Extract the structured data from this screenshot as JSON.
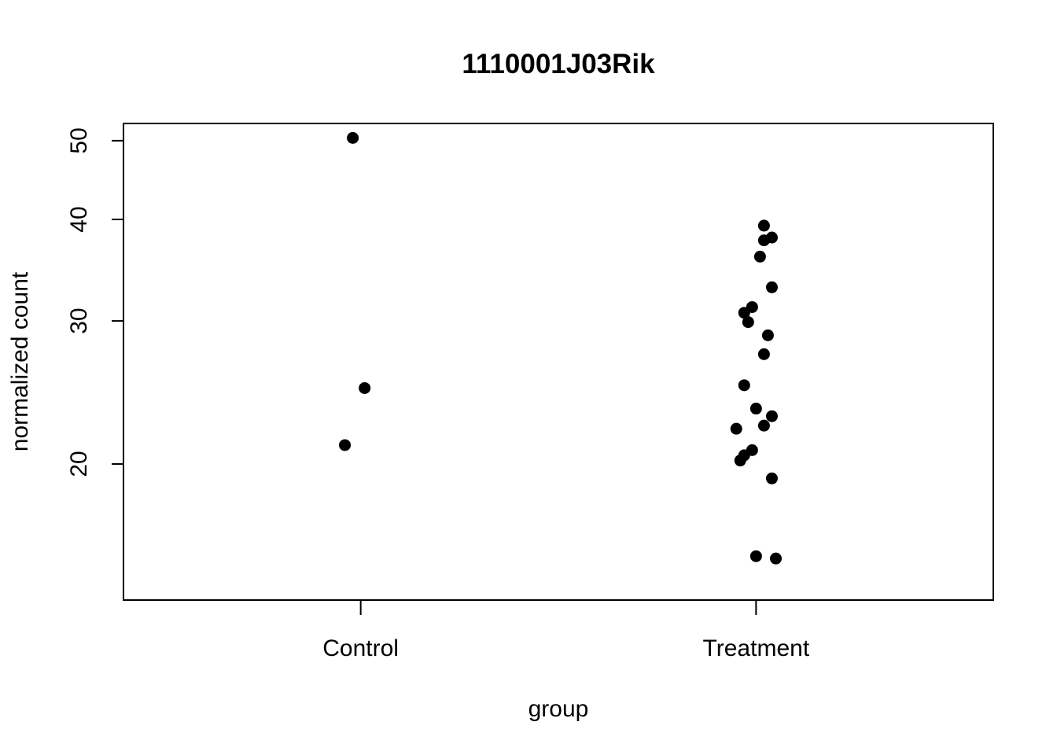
{
  "chart_data": {
    "type": "scatter",
    "title": "1110001J03Rik",
    "xlabel": "group",
    "ylabel": "normalized count",
    "y_scale": "log",
    "ylim": [
      13.6,
      52.5
    ],
    "y_ticks": [
      20,
      30,
      40,
      50
    ],
    "categories": [
      "Control",
      "Treatment"
    ],
    "grid": false,
    "legend": "none",
    "point_color": "#000000",
    "series": [
      {
        "category": "Control",
        "points": [
          {
            "x": 0.98,
            "y": 50.4
          },
          {
            "x": 1.01,
            "y": 24.8
          },
          {
            "x": 0.96,
            "y": 21.1
          }
        ]
      },
      {
        "category": "Treatment",
        "points": [
          {
            "x": 2.02,
            "y": 39.3
          },
          {
            "x": 2.02,
            "y": 37.7
          },
          {
            "x": 2.04,
            "y": 38.0
          },
          {
            "x": 2.01,
            "y": 36.0
          },
          {
            "x": 2.04,
            "y": 33.0
          },
          {
            "x": 1.99,
            "y": 31.2
          },
          {
            "x": 1.97,
            "y": 30.7
          },
          {
            "x": 1.98,
            "y": 29.9
          },
          {
            "x": 2.03,
            "y": 28.8
          },
          {
            "x": 2.02,
            "y": 27.3
          },
          {
            "x": 1.97,
            "y": 25.0
          },
          {
            "x": 2.0,
            "y": 23.4
          },
          {
            "x": 2.04,
            "y": 22.9
          },
          {
            "x": 2.02,
            "y": 22.3
          },
          {
            "x": 1.95,
            "y": 22.1
          },
          {
            "x": 1.99,
            "y": 20.8
          },
          {
            "x": 1.97,
            "y": 20.5
          },
          {
            "x": 1.96,
            "y": 20.2
          },
          {
            "x": 2.04,
            "y": 19.2
          },
          {
            "x": 2.0,
            "y": 15.4
          },
          {
            "x": 2.05,
            "y": 15.3
          }
        ]
      }
    ]
  }
}
